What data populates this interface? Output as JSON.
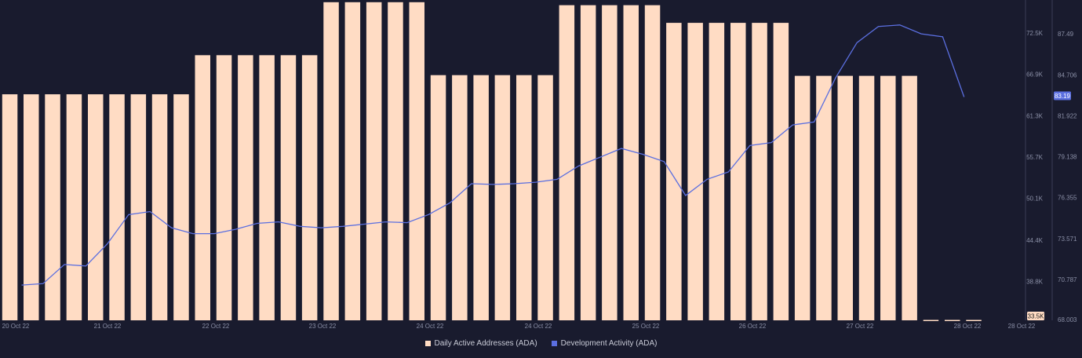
{
  "colors": {
    "background": "#191b2e",
    "bar": "#ffdcc4",
    "line": "#5b6fe0",
    "tick_text": "#8a8fa6",
    "axis": "#3a3d55"
  },
  "legend": {
    "items": [
      {
        "label": "Daily Active Addresses (ADA)",
        "color": "#ffdcc4"
      },
      {
        "label": "Development Activity (ADA)",
        "color": "#5b6fe0"
      }
    ]
  },
  "chart_data": {
    "type": "bar",
    "x_tick_labels": [
      "20 Oct 22",
      "21 Oct 22",
      "22 Oct 22",
      "23 Oct 22",
      "24 Oct 22",
      "24 Oct 22",
      "25 Oct 22",
      "26 Oct 22",
      "27 Oct 22",
      "28 Oct 22",
      "28 Oct 22"
    ],
    "left_axis": {
      "ticks": [
        "72.5K",
        "66.9K",
        "61.3K",
        "55.7K",
        "50.1K",
        "44.4K",
        "38.8K",
        "33.5K"
      ],
      "tick_values": [
        72500,
        66900,
        61300,
        55700,
        50100,
        44400,
        38800,
        33500
      ],
      "ylim": [
        33500,
        77000
      ],
      "current_value_label": "33.5K"
    },
    "right_axis": {
      "ticks": [
        "87.49",
        "84.706",
        "81.922",
        "79.138",
        "76.355",
        "73.571",
        "70.787",
        "68.003"
      ],
      "tick_values": [
        87.49,
        84.706,
        81.922,
        79.138,
        76.355,
        73.571,
        70.787,
        68.003
      ],
      "ylim": [
        68.003,
        89.8
      ],
      "current_value_label": "83.19"
    },
    "series": [
      {
        "name": "Daily Active Addresses (ADA)",
        "type": "bar",
        "values": [
          64200,
          64200,
          64200,
          64200,
          64200,
          64200,
          64200,
          64200,
          64200,
          69500,
          69500,
          69500,
          69500,
          69500,
          69500,
          76700,
          76700,
          76700,
          76700,
          76700,
          66800,
          66800,
          66800,
          66800,
          66800,
          66800,
          76300,
          76300,
          76300,
          76300,
          76300,
          73900,
          73900,
          73900,
          73900,
          73900,
          73900,
          66700,
          66700,
          66700,
          66700,
          66700,
          66700,
          33550,
          33550,
          33550
        ]
      },
      {
        "name": "Development Activity (ADA)",
        "type": "line",
        "values": [
          70.4,
          70.5,
          71.8,
          71.7,
          73.2,
          75.2,
          75.4,
          74.3,
          73.9,
          73.9,
          74.2,
          74.6,
          74.7,
          74.4,
          74.3,
          74.4,
          74.55,
          74.7,
          74.65,
          75.2,
          76.0,
          77.3,
          77.25,
          77.3,
          77.4,
          77.6,
          78.5,
          79.1,
          79.7,
          79.3,
          78.8,
          76.5,
          77.6,
          78.1,
          79.9,
          80.1,
          81.3,
          81.5,
          84.5,
          86.9,
          88.0,
          88.1,
          87.5,
          87.3,
          83.2
        ]
      }
    ]
  }
}
